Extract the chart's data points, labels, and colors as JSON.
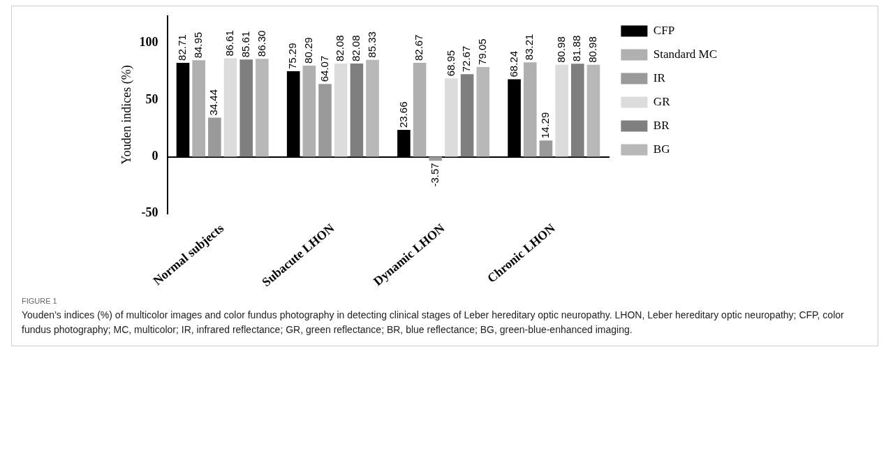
{
  "chart_data": {
    "type": "bar",
    "ylabel": "Youden indices (%)",
    "categories": [
      "Normal subjects",
      "Subacute LHON",
      "Dynamic LHON",
      "Chronic LHON"
    ],
    "series": [
      {
        "name": "CFP",
        "color": "#000000",
        "values": [
          82.71,
          75.29,
          23.66,
          68.24
        ],
        "value_labels": [
          "82.71",
          "75.29",
          "23.66",
          "68.24"
        ]
      },
      {
        "name": "Standard MC",
        "color": "#b0b0b0",
        "values": [
          84.95,
          80.29,
          82.67,
          83.21
        ],
        "value_labels": [
          "84.95",
          "80.29",
          "82.67",
          "83.21"
        ]
      },
      {
        "name": "IR",
        "color": "#9a9a9a",
        "values": [
          34.44,
          64.07,
          -3.57,
          14.29
        ],
        "value_labels": [
          "34.44",
          "64.07",
          "-3.57",
          "14.29"
        ]
      },
      {
        "name": "GR",
        "color": "#dcdcdc",
        "values": [
          86.61,
          82.08,
          68.95,
          80.98
        ],
        "value_labels": [
          "86.61",
          "82.08",
          "68.95",
          "80.98"
        ]
      },
      {
        "name": "BR",
        "color": "#7f7f7f",
        "values": [
          85.61,
          82.08,
          72.67,
          81.88
        ],
        "value_labels": [
          "85.61",
          "82.08",
          "72.67",
          "81.88"
        ]
      },
      {
        "name": "BG",
        "color": "#b8b8b8",
        "values": [
          86.3,
          85.33,
          79.05,
          80.98
        ],
        "value_labels": [
          "86.30",
          "85.33",
          "79.05",
          "80.98"
        ]
      }
    ],
    "ylim": [
      -50,
      124
    ],
    "yticks": [
      -50,
      0,
      50,
      100
    ],
    "legend": "right",
    "annotations": [
      "FIGURE 1",
      "Youden’s indices (%) of multicolor images and color fundus photography in detecting clinical stages of Leber hereditary optic neuropathy. LHON, Leber hereditary optic neuropathy; CFP, color fundus photography; MC, multicolor; IR, infrared reflectance; GR, green reflectance; BR, blue reflectance; BG, green-blue-enhanced imaging."
    ]
  }
}
